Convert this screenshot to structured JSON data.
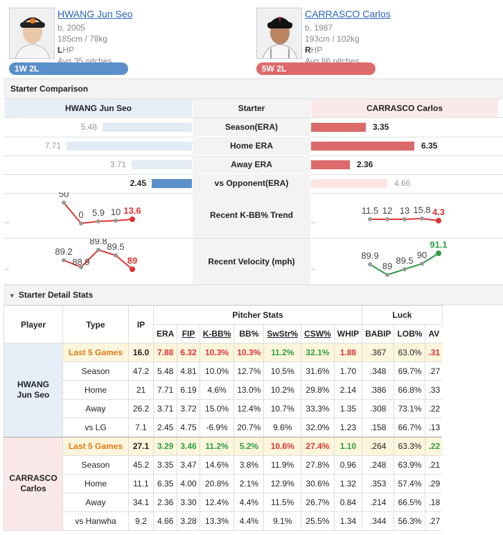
{
  "home": {
    "name": "HWANG Jun Seo",
    "born": "b. 2005",
    "size": "185cm / 78kg",
    "hand_letter": "L",
    "hand_rest": "HP",
    "avg_pitches": "Avg 35 pitches",
    "record": "1W 2L",
    "color": "#5b8fc9"
  },
  "away": {
    "name": "CARRASCO Carlos",
    "born": "b. 1987",
    "size": "193cm / 102kg",
    "hand_letter": "R",
    "hand_rest": "HP",
    "avg_pitches": "Avg 86 pitches",
    "record": "5W 2L",
    "color": "#dc6a6a"
  },
  "comparison": {
    "title": "Starter Comparison",
    "left_header": "HWANG Jun Seo",
    "mid_header": "Starter",
    "right_header": "CARRASCO Carlos",
    "rows": [
      {
        "label": "Season(ERA)",
        "left": "5.48",
        "right": "3.35",
        "lv": 5.48,
        "rv": 3.35
      },
      {
        "label": "Home ERA",
        "left": "7.71",
        "right": "6.35",
        "lv": 7.71,
        "rv": 6.35
      },
      {
        "label": "Away ERA",
        "left": "3.71",
        "right": "2.36",
        "lv": 3.71,
        "rv": 2.36
      },
      {
        "label": "vs Opponent(ERA)",
        "left": "2.45",
        "right": "4.66",
        "lv": 2.45,
        "rv": 4.66
      }
    ],
    "kbb_label": "Recent K-BB% Trend",
    "kbb_left": [
      "50",
      "0",
      "5.9",
      "10",
      "13.6"
    ],
    "kbb_right": [
      "11.5",
      "12",
      "13",
      "15.8",
      "4.3"
    ],
    "velo_label": "Recent Velocity (mph)",
    "velo_left": [
      "89.2",
      "88.9",
      "89.8",
      "89.5",
      "89"
    ],
    "velo_right": [
      "89.9",
      "89",
      "89.5",
      "90",
      "91.1"
    ]
  },
  "detail": {
    "title": "Starter Detail Stats",
    "headers": {
      "player": "Player",
      "type": "Type",
      "ip": "IP",
      "group1": "Pitcher Stats",
      "group2": "Luck",
      "cols": [
        "ERA",
        "FIP",
        "K-BB%",
        "BB%",
        "SwStr%",
        "CSW%",
        "WHIP",
        "BABIP",
        "LOB%",
        "AV"
      ]
    },
    "home_player": [
      "HWANG",
      "Jun Seo"
    ],
    "away_player": [
      "CARRASCO",
      "Carlos"
    ],
    "home_rows": [
      {
        "type": "Last 5 Games",
        "ip": "16.0",
        "vals": [
          "7.88",
          "6.32",
          "10.3%",
          "10.3%",
          "11.2%",
          "32.1%",
          "1.88",
          ".367",
          "63.0%",
          ".31"
        ]
      },
      {
        "type": "Season",
        "ip": "47.2",
        "vals": [
          "5.48",
          "4.81",
          "10.0%",
          "12.7%",
          "10.5%",
          "31.6%",
          "1.70",
          ".348",
          "69.7%",
          ".27"
        ]
      },
      {
        "type": "Home",
        "ip": "21",
        "vals": [
          "7.71",
          "6.19",
          "4.6%",
          "13.0%",
          "10.2%",
          "29.8%",
          "2.14",
          ".386",
          "66.8%",
          ".33"
        ]
      },
      {
        "type": "Away",
        "ip": "26.2",
        "vals": [
          "3.71",
          "3.72",
          "15.0%",
          "12.4%",
          "10.7%",
          "33.3%",
          "1.35",
          ".308",
          "73.1%",
          ".22"
        ]
      },
      {
        "type": "vs LG",
        "ip": "7.1",
        "vals": [
          "2.45",
          "4.75",
          "-6.9%",
          "20.7%",
          "9.6%",
          "32.0%",
          "1.23",
          ".158",
          "66.7%",
          ".13"
        ]
      }
    ],
    "away_rows": [
      {
        "type": "Last 5 Games",
        "ip": "27.1",
        "vals": [
          "3.29",
          "3.46",
          "11.2%",
          "5.2%",
          "10.6%",
          "27.4%",
          "1.10",
          ".264",
          "63.3%",
          ".22"
        ]
      },
      {
        "type": "Season",
        "ip": "45.2",
        "vals": [
          "3.35",
          "3.47",
          "14.6%",
          "3.8%",
          "11.9%",
          "27.8%",
          "0.96",
          ".248",
          "63.9%",
          ".21"
        ]
      },
      {
        "type": "Home",
        "ip": "11.1",
        "vals": [
          "6.35",
          "4.00",
          "20.8%",
          "2.1%",
          "12.9%",
          "30.6%",
          "1.32",
          ".353",
          "57.4%",
          ".29"
        ]
      },
      {
        "type": "Away",
        "ip": "34.1",
        "vals": [
          "2.36",
          "3.30",
          "12.4%",
          "4.4%",
          "11.5%",
          "26.7%",
          "0.84",
          ".214",
          "66.5%",
          ".18"
        ]
      },
      {
        "type": "vs Hanwha",
        "ip": "9.2",
        "vals": [
          "4.66",
          "3.28",
          "13.3%",
          "4.4%",
          "9.1%",
          "25.5%",
          "1.34",
          ".344",
          "56.3%",
          ".27"
        ]
      }
    ],
    "home_l5_colors": [
      "red",
      "red",
      "red",
      "red",
      "grn",
      "grn",
      "red",
      "",
      "",
      "red"
    ],
    "away_l5_colors": [
      "grn",
      "grn",
      "grn",
      "grn",
      "red",
      "red",
      "grn",
      "",
      "",
      "grn"
    ]
  }
}
